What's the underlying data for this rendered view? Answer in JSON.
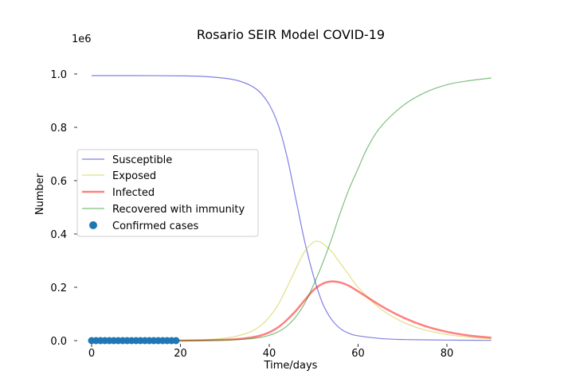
{
  "chart_data": {
    "type": "line",
    "title": "Rosario SEIR Model COVID-19",
    "xlabel": "Time/days",
    "ylabel": "Number",
    "offset_label": "1e6",
    "xlim": [
      -1.5,
      90
    ],
    "ylim": [
      0,
      1.0
    ],
    "xticks": [
      0,
      20,
      40,
      60,
      80
    ],
    "yticks": [
      0.0,
      0.2,
      0.4,
      0.6,
      0.8,
      1.0
    ],
    "xtick_labels": [
      "0",
      "20",
      "40",
      "60",
      "80"
    ],
    "ytick_labels": [
      "0.0",
      "0.2",
      "0.4",
      "0.6",
      "0.8",
      "1.0"
    ],
    "grid": false,
    "legend_position": "center-left",
    "series": [
      {
        "name": "Susceptible",
        "color": "#0000cc",
        "x": [
          0,
          10,
          20,
          25,
          30,
          33,
          36,
          38,
          40,
          42,
          44,
          46,
          48,
          50,
          52,
          54,
          56,
          58,
          60,
          65,
          70,
          80,
          90
        ],
        "y": [
          0.994,
          0.994,
          0.993,
          0.991,
          0.984,
          0.975,
          0.955,
          0.93,
          0.885,
          0.81,
          0.69,
          0.53,
          0.37,
          0.24,
          0.14,
          0.08,
          0.045,
          0.027,
          0.018,
          0.008,
          0.004,
          0.002,
          0.001
        ]
      },
      {
        "name": "Exposed",
        "color": "#cccc33",
        "x": [
          0,
          10,
          20,
          25,
          30,
          33,
          36,
          38,
          40,
          42,
          44,
          46,
          48,
          50,
          51,
          52,
          54,
          56,
          58,
          60,
          65,
          70,
          75,
          80,
          85,
          90
        ],
        "y": [
          0,
          0,
          0.001,
          0.003,
          0.009,
          0.018,
          0.035,
          0.055,
          0.088,
          0.135,
          0.2,
          0.27,
          0.335,
          0.37,
          0.372,
          0.365,
          0.335,
          0.29,
          0.245,
          0.2,
          0.12,
          0.07,
          0.04,
          0.023,
          0.013,
          0.007
        ]
      },
      {
        "name": "Infected",
        "color": "#ff0000",
        "x": [
          0,
          10,
          20,
          25,
          30,
          33,
          36,
          38,
          40,
          42,
          44,
          46,
          48,
          50,
          52,
          54,
          56,
          58,
          60,
          65,
          70,
          75,
          80,
          85,
          90
        ],
        "y": [
          0,
          0,
          0,
          0.001,
          0.003,
          0.006,
          0.012,
          0.019,
          0.031,
          0.05,
          0.078,
          0.112,
          0.152,
          0.19,
          0.213,
          0.222,
          0.218,
          0.205,
          0.185,
          0.132,
          0.088,
          0.055,
          0.033,
          0.019,
          0.011
        ]
      },
      {
        "name": "Recovered with immunity",
        "color": "#008000",
        "x": [
          0,
          10,
          20,
          30,
          35,
          38,
          40,
          42,
          44,
          46,
          48,
          50,
          52,
          54,
          56,
          58,
          60,
          62,
          65,
          70,
          75,
          80,
          85,
          90
        ],
        "y": [
          0,
          0,
          0,
          0.002,
          0.006,
          0.012,
          0.02,
          0.033,
          0.055,
          0.09,
          0.14,
          0.21,
          0.29,
          0.38,
          0.48,
          0.57,
          0.645,
          0.72,
          0.8,
          0.88,
          0.93,
          0.96,
          0.975,
          0.985
        ]
      }
    ],
    "scatter": {
      "name": "Confirmed cases",
      "color": "#1f77b4",
      "x": [
        0,
        1,
        2,
        3,
        4,
        5,
        6,
        7,
        8,
        9,
        10,
        11,
        12,
        13,
        14,
        15,
        16,
        17,
        18,
        19
      ],
      "y": [
        0,
        0,
        0,
        0,
        0,
        0,
        0,
        0,
        0,
        0,
        0,
        0,
        0,
        0,
        0,
        0,
        0,
        0,
        0,
        0
      ]
    }
  }
}
